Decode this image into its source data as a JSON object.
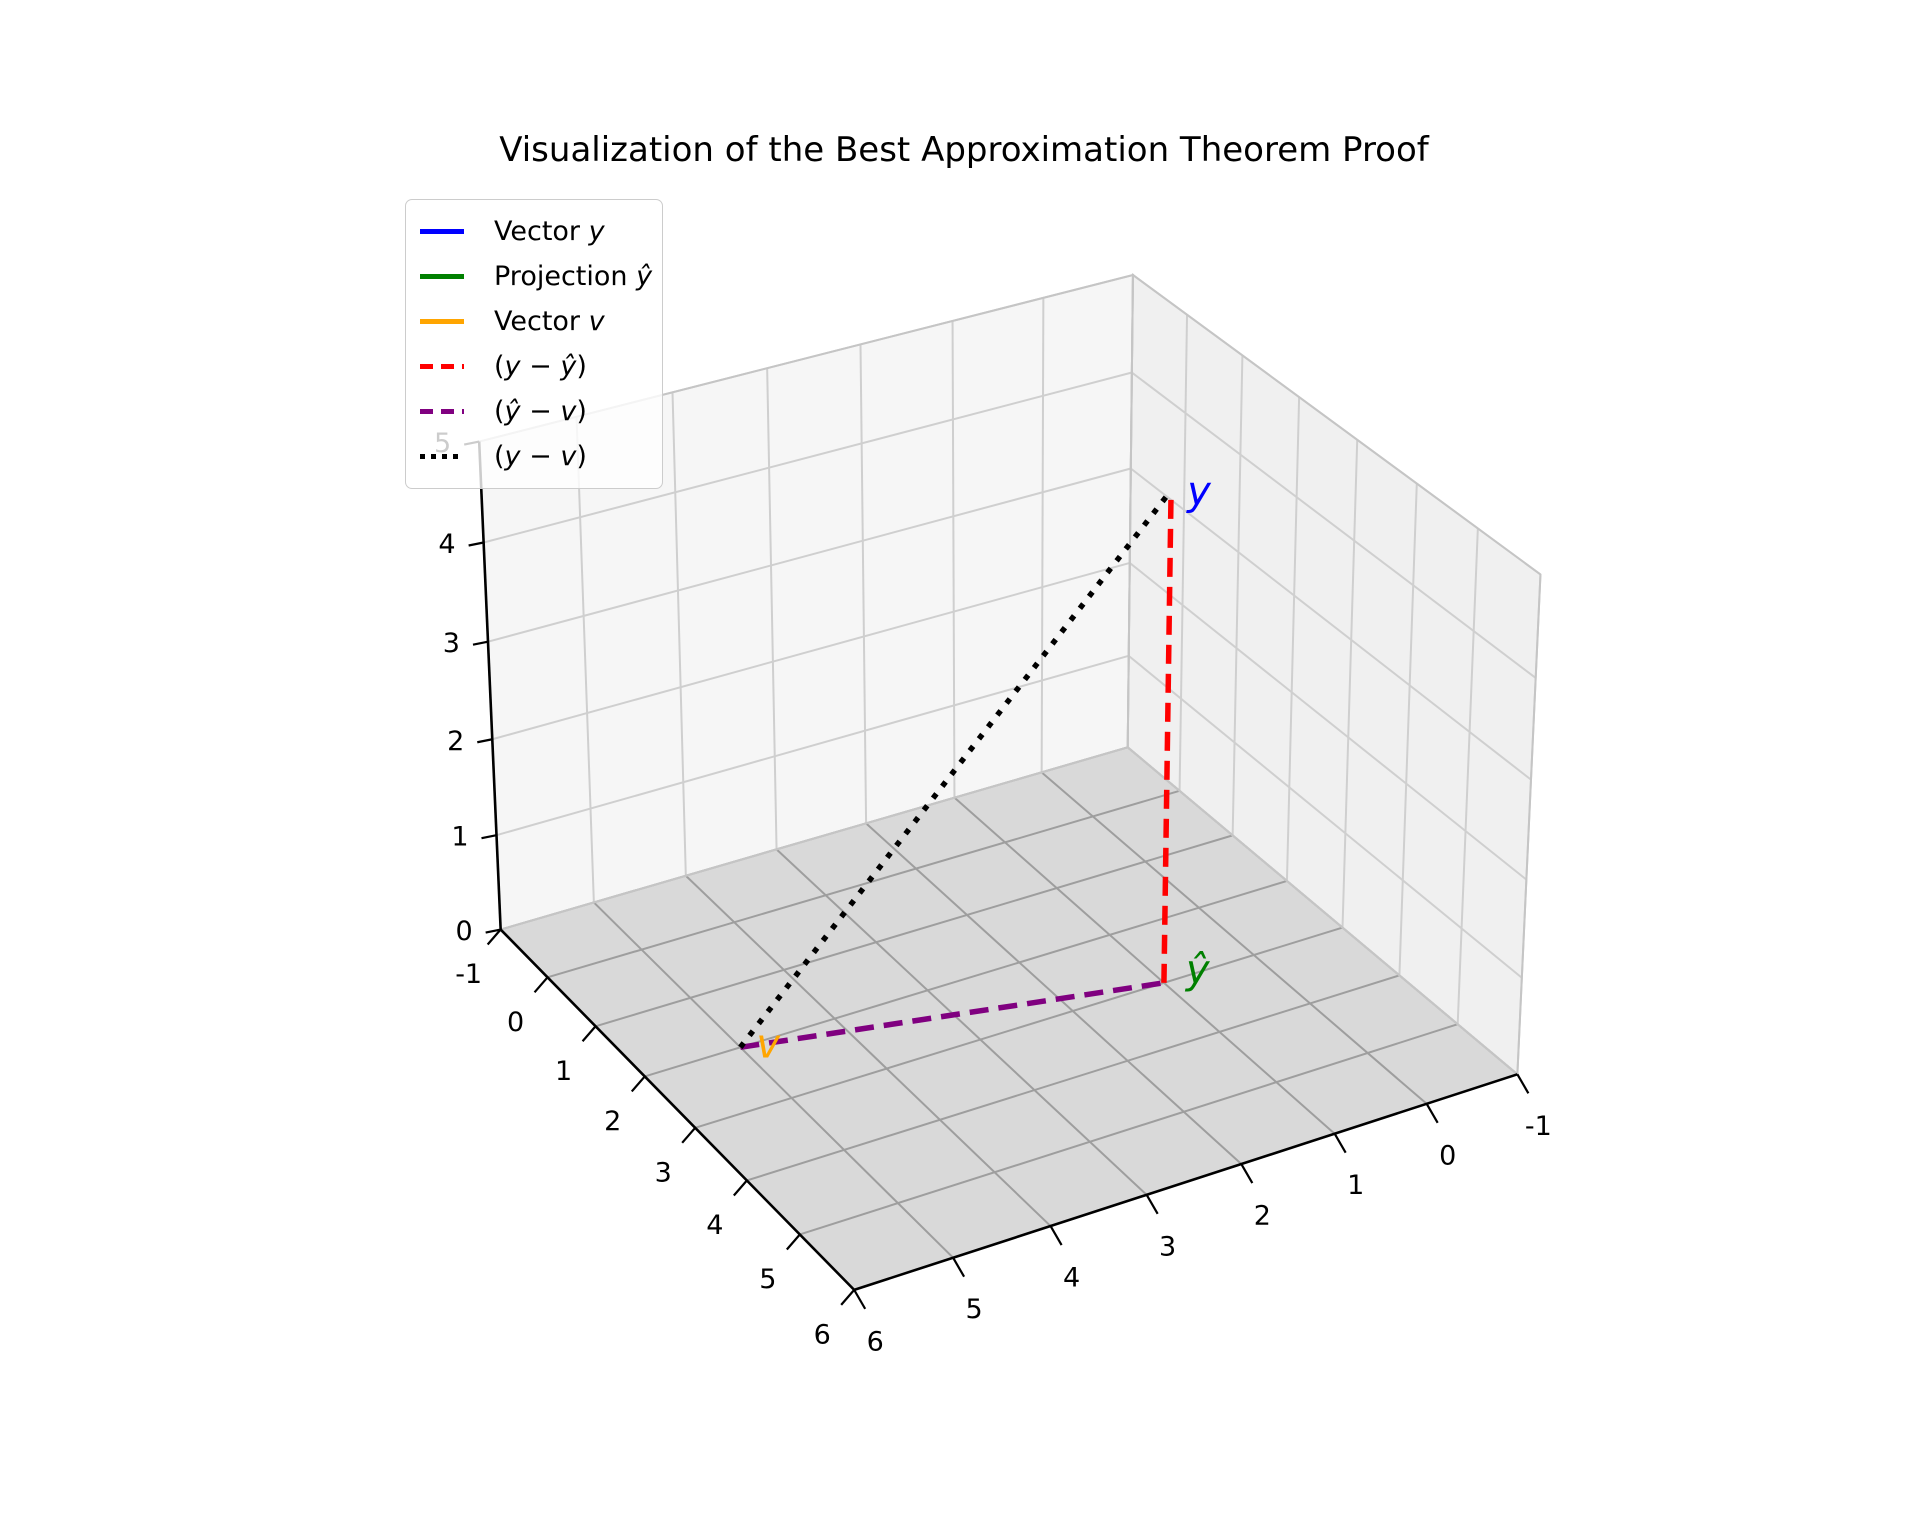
{
  "title": "Visualization of the Best Approximation Theorem Proof",
  "legend": {
    "items": [
      {
        "label": "Vector y",
        "color": "#0000ff",
        "style": "solid"
      },
      {
        "label": "Projection ŷ",
        "color": "#008000",
        "style": "solid"
      },
      {
        "label": "Vector v",
        "color": "#ffa500",
        "style": "solid"
      },
      {
        "label": "(y − ŷ)",
        "color": "#ff0000",
        "style": "dashed"
      },
      {
        "label": "(ŷ − v)",
        "color": "#800080",
        "style": "dashed"
      },
      {
        "label": "(y − v)",
        "color": "#000000",
        "style": "dotted"
      }
    ]
  },
  "chart_data": {
    "type": "line",
    "subtype": "3d-line-plot",
    "title": "Visualization of the Best Approximation Theorem Proof",
    "axes": {
      "xlim": [
        -1,
        6
      ],
      "ylim": [
        -1,
        6
      ],
      "zlim": [
        0,
        5
      ],
      "x_ticks": [
        -1,
        0,
        1,
        2,
        3,
        4,
        5,
        6
      ],
      "y_ticks": [
        -1,
        0,
        1,
        2,
        3,
        4,
        5,
        6
      ],
      "z_ticks": [
        0,
        1,
        2,
        3,
        4,
        5
      ],
      "grid": true
    },
    "view": {
      "elev": 30,
      "azim": 60,
      "dist": 10,
      "projection": "perspective"
    },
    "points": [
      {
        "name": "y",
        "coords": [
          1,
          3,
          5
        ],
        "label": "y",
        "color": "#0000ff"
      },
      {
        "name": "y-hat",
        "coords": [
          1,
          3,
          0
        ],
        "label": "ŷ",
        "color": "#008000"
      },
      {
        "name": "v",
        "coords": [
          5,
          2,
          0
        ],
        "label": "v",
        "color": "#ffa500"
      }
    ],
    "segments": [
      {
        "name": "y-minus-yhat",
        "from": [
          1,
          3,
          0
        ],
        "to": [
          1,
          3,
          5
        ],
        "color": "#ff0000",
        "style": "dashed"
      },
      {
        "name": "yhat-minus-v",
        "from": [
          5,
          2,
          0
        ],
        "to": [
          1,
          3,
          0
        ],
        "color": "#800080",
        "style": "dashed"
      },
      {
        "name": "y-minus-v",
        "from": [
          5,
          2,
          0
        ],
        "to": [
          1,
          3,
          5
        ],
        "color": "#000000",
        "style": "dotted"
      }
    ],
    "colors": {
      "floor": "#d9d9d9",
      "wall_left": "#f6f6f6",
      "wall_right": "#f0f0f0",
      "grid_floor": "#9e9e9e",
      "grid_wall": "#cfcfcf",
      "pane_edge": "#c5c5c5",
      "axis_line": "#000000",
      "tick_label": "#000000"
    }
  }
}
